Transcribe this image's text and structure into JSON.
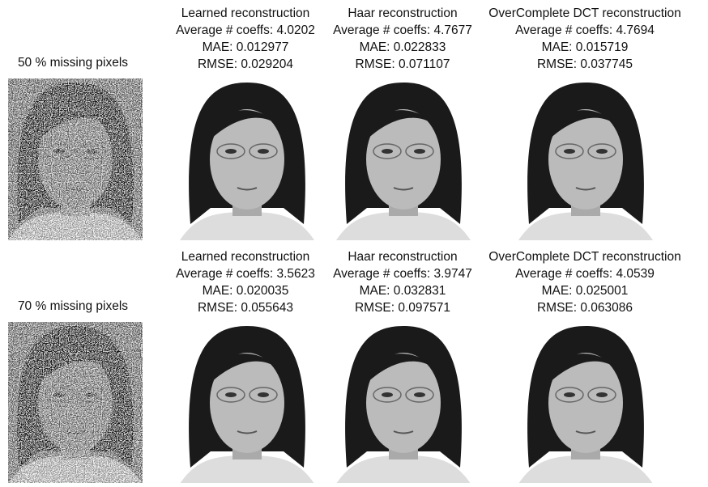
{
  "rows": [
    {
      "label": "50 % missing pixels",
      "panels": [
        {
          "title": "Learned reconstruction",
          "coeffs": "Average # coeffs: 4.0202",
          "mae": "MAE: 0.012977",
          "rmse": "RMSE: 0.029204"
        },
        {
          "title": "Haar reconstruction",
          "coeffs": "Average # coeffs: 4.7677",
          "mae": "MAE: 0.022833",
          "rmse": "RMSE: 0.071107"
        },
        {
          "title": "OverComplete DCT reconstruction",
          "coeffs": "Average # coeffs: 4.7694",
          "mae": "MAE: 0.015719",
          "rmse": "RMSE: 0.037745"
        }
      ]
    },
    {
      "label": "70 % missing pixels",
      "panels": [
        {
          "title": "Learned reconstruction",
          "coeffs": "Average # coeffs: 3.5623",
          "mae": "MAE: 0.020035",
          "rmse": "RMSE: 0.055643"
        },
        {
          "title": "Haar reconstruction",
          "coeffs": "Average # coeffs: 3.9747",
          "mae": "MAE: 0.032831",
          "rmse": "RMSE: 0.097571"
        },
        {
          "title": "OverComplete DCT reconstruction",
          "coeffs": "Average # coeffs: 4.0539",
          "mae": "MAE: 0.025001",
          "rmse": "RMSE: 0.063086"
        }
      ]
    }
  ]
}
